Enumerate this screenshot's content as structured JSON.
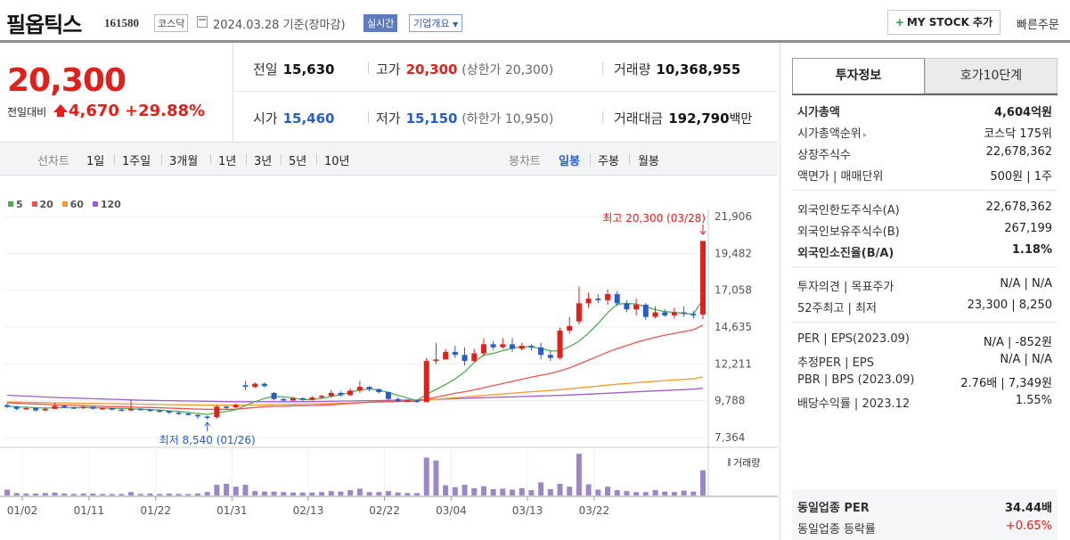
{
  "header": {
    "name": "필옵틱스",
    "code": "161580",
    "market": "코스닥",
    "date": "2024.03.28",
    "basis": "기준(장마감)",
    "realtime": "실시간",
    "company_info": "기업개요",
    "mystock_label": "MY STOCK 추가",
    "quick_order": "빠른주문"
  },
  "price": {
    "current": "20,300",
    "compare_label": "전일대비",
    "change": "4,670",
    "change_pct": "+29.88%"
  },
  "quote": {
    "prev_label": "전일",
    "prev": "15,630",
    "high_label": "고가",
    "high": "20,300",
    "upper_limit": "(상한가 20,300)",
    "volume_label": "거래량",
    "volume": "10,368,955",
    "open_label": "시가",
    "open": "15,460",
    "low_label": "저가",
    "low": "15,150",
    "lower_limit": "(하한가 10,950)",
    "amount_label": "거래대금",
    "amount": "192,790",
    "amount_unit": "백만"
  },
  "period_bar": {
    "line_chart_label": "선차트",
    "line_periods": [
      "1일",
      "1주일",
      "3개월",
      "1년",
      "3년",
      "5년",
      "10년"
    ],
    "candle_label": "봉차트",
    "candle_periods": [
      "일봉",
      "주봉",
      "월봉"
    ],
    "active_candle": "일봉"
  },
  "chart_data": {
    "type": "candlestick",
    "legend": [
      {
        "name": "5",
        "color": "#4caf50"
      },
      {
        "name": "20",
        "color": "#f2524f"
      },
      {
        "name": "60",
        "color": "#f39a2a"
      },
      {
        "name": "120",
        "color": "#a25bd0"
      }
    ],
    "y_ticks": [
      "21,906",
      "19,482",
      "17,058",
      "14,635",
      "12,211",
      "9,788",
      "7,364"
    ],
    "ylim": [
      7364,
      21906
    ],
    "x_ticks": [
      "01/02",
      "01/11",
      "01/22",
      "01/31",
      "02/13",
      "02/22",
      "03/04",
      "03/13",
      "03/22"
    ],
    "high_annotation": "최고 20,300 (03/28)",
    "low_annotation": "최저 8,540 (01/26)",
    "volume_label": "거래량",
    "candles": [
      [
        9500,
        9380,
        9600,
        9300
      ],
      [
        9400,
        9250,
        9450,
        9150
      ],
      [
        9260,
        9300,
        9400,
        9200
      ],
      [
        9300,
        9150,
        9350,
        9050
      ],
      [
        9150,
        9250,
        9350,
        9100
      ],
      [
        9250,
        9450,
        9650,
        9250
      ],
      [
        9450,
        9350,
        9500,
        9300
      ],
      [
        9350,
        9300,
        9400,
        9250
      ],
      [
        9300,
        9380,
        9450,
        9250
      ],
      [
        9380,
        9260,
        9400,
        9200
      ],
      [
        9260,
        9300,
        9350,
        9200
      ],
      [
        9300,
        9200,
        9350,
        9150
      ],
      [
        9200,
        9150,
        9300,
        9100
      ],
      [
        9150,
        9250,
        9800,
        9100
      ],
      [
        9250,
        9200,
        9300,
        9150
      ],
      [
        9200,
        9150,
        9250,
        9050
      ],
      [
        9150,
        9100,
        9200,
        9000
      ],
      [
        9100,
        9000,
        9150,
        8900
      ],
      [
        9000,
        8950,
        9050,
        8850
      ],
      [
        8950,
        8850,
        9000,
        8800
      ],
      [
        8850,
        8750,
        8900,
        8600
      ],
      [
        8750,
        8700,
        8800,
        8540
      ],
      [
        8700,
        9400,
        9500,
        8600
      ],
      [
        9400,
        9350,
        9450,
        9250
      ],
      [
        9350,
        9500,
        9600,
        9300
      ],
      [
        10800,
        10700,
        11100,
        10500
      ],
      [
        10700,
        10900,
        11000,
        10600
      ],
      [
        10900,
        10750,
        11000,
        10650
      ],
      [
        10300,
        9900,
        10350,
        9800
      ],
      [
        9900,
        9800,
        9950,
        9700
      ],
      [
        9800,
        9950,
        10050,
        9750
      ],
      [
        9950,
        9850,
        10000,
        9750
      ],
      [
        9850,
        10000,
        10100,
        9800
      ],
      [
        10000,
        10100,
        10200,
        9900
      ],
      [
        10100,
        10300,
        10500,
        10000
      ],
      [
        10300,
        10150,
        10400,
        10050
      ],
      [
        10150,
        10450,
        10600,
        10100
      ],
      [
        10450,
        10700,
        11100,
        10300
      ],
      [
        10700,
        10550,
        10750,
        10400
      ],
      [
        10550,
        10350,
        10600,
        10250
      ],
      [
        10350,
        9900,
        10400,
        9800
      ],
      [
        9900,
        9750,
        10000,
        9700
      ],
      [
        9750,
        9800,
        9850,
        9700
      ],
      [
        9800,
        9700,
        9850,
        9650
      ],
      [
        9700,
        12400,
        12600,
        9700
      ],
      [
        12400,
        12500,
        13600,
        12200
      ],
      [
        12500,
        13000,
        13200,
        12700
      ],
      [
        13000,
        12800,
        13400,
        12600
      ],
      [
        12800,
        12400,
        13300,
        12100
      ],
      [
        12400,
        12900,
        13200,
        12300
      ],
      [
        12900,
        13500,
        13900,
        12700
      ],
      [
        13500,
        13300,
        13700,
        13100
      ],
      [
        13300,
        13500,
        13900,
        13200
      ],
      [
        13500,
        13200,
        13900,
        13000
      ],
      [
        13200,
        13400,
        13600,
        13100
      ],
      [
        13400,
        13300,
        13500,
        13100
      ],
      [
        13300,
        12800,
        13600,
        12500
      ],
      [
        12800,
        12600,
        13100,
        12400
      ],
      [
        12600,
        14400,
        14600,
        12500
      ],
      [
        14400,
        14700,
        15300,
        14200
      ],
      [
        15000,
        16200,
        17300,
        14800
      ],
      [
        16200,
        16500,
        16900,
        15900
      ],
      [
        16500,
        16400,
        16800,
        16200
      ],
      [
        16400,
        16800,
        17100,
        16100
      ],
      [
        16800,
        16200,
        17000,
        16000
      ],
      [
        16200,
        15800,
        16400,
        15600
      ],
      [
        15800,
        16100,
        16500,
        15400
      ],
      [
        16100,
        15300,
        16200,
        15100
      ],
      [
        15300,
        15600,
        16000,
        15200
      ],
      [
        15600,
        15400,
        15800,
        15300
      ],
      [
        15400,
        15600,
        15900,
        15200
      ],
      [
        15600,
        15500,
        16000,
        15300
      ],
      [
        15500,
        15400,
        15700,
        15200
      ],
      [
        15460,
        20300,
        20300,
        15150
      ]
    ],
    "ma5": [
      9420,
      9380,
      9360,
      9330,
      9300,
      9320,
      9330,
      9330,
      9340,
      9330,
      9310,
      9290,
      9280,
      9250,
      9230,
      9200,
      9170,
      9120,
      9080,
      9010,
      8950,
      8890,
      8980,
      9090,
      9200,
      9470,
      9720,
      9940,
      10080,
      10040,
      9970,
      9870,
      9870,
      9940,
      10060,
      10190,
      10330,
      10500,
      10560,
      10490,
      10330,
      10150,
      9970,
      9790,
      10200,
      10530,
      10850,
      11220,
      11680,
      12300,
      12800,
      12900,
      13080,
      13240,
      13340,
      13330,
      13220,
      13060,
      13080,
      13340,
      13700,
      14240,
      14870,
      15580,
      16140,
      16180,
      16150,
      15980,
      15780,
      15650,
      15600,
      15530,
      15480,
      16440
    ],
    "ma20": [
      9650,
      9620,
      9590,
      9570,
      9540,
      9520,
      9500,
      9480,
      9460,
      9440,
      9420,
      9400,
      9390,
      9370,
      9350,
      9340,
      9320,
      9300,
      9280,
      9260,
      9240,
      9220,
      9210,
      9220,
      9230,
      9290,
      9340,
      9390,
      9420,
      9430,
      9450,
      9460,
      9470,
      9490,
      9520,
      9560,
      9600,
      9650,
      9690,
      9720,
      9730,
      9740,
      9750,
      9760,
      9890,
      10020,
      10150,
      10270,
      10380,
      10500,
      10640,
      10780,
      10920,
      11060,
      11200,
      11340,
      11460,
      11580,
      11750,
      11950,
      12200,
      12460,
      12720,
      12980,
      13220,
      13420,
      13620,
      13800,
      13960,
      14100,
      14220,
      14340,
      14460,
      14760
    ],
    "ma60": [
      9700,
      9690,
      9680,
      9670,
      9660,
      9650,
      9640,
      9630,
      9620,
      9610,
      9600,
      9590,
      9580,
      9570,
      9560,
      9550,
      9540,
      9530,
      9520,
      9510,
      9500,
      9490,
      9490,
      9490,
      9490,
      9500,
      9510,
      9520,
      9530,
      9540,
      9550,
      9560,
      9570,
      9580,
      9600,
      9620,
      9640,
      9660,
      9680,
      9700,
      9720,
      9740,
      9760,
      9780,
      9830,
      9880,
      9930,
      9980,
      10030,
      10080,
      10130,
      10180,
      10230,
      10280,
      10330,
      10380,
      10420,
      10460,
      10510,
      10570,
      10630,
      10690,
      10750,
      10810,
      10870,
      10920,
      10970,
      11020,
      11070,
      11110,
      11150,
      11190,
      11230,
      11350
    ],
    "ma120": [
      10150,
      10120,
      10090,
      10060,
      10030,
      10000,
      9980,
      9960,
      9940,
      9920,
      9900,
      9880,
      9860,
      9840,
      9820,
      9810,
      9800,
      9790,
      9780,
      9770,
      9760,
      9750,
      9740,
      9730,
      9720,
      9720,
      9720,
      9720,
      9720,
      9720,
      9720,
      9720,
      9730,
      9740,
      9750,
      9760,
      9770,
      9780,
      9790,
      9800,
      9810,
      9820,
      9830,
      9840,
      9860,
      9880,
      9900,
      9920,
      9940,
      9960,
      9980,
      10000,
      10020,
      10040,
      10060,
      10080,
      10100,
      10120,
      10140,
      10160,
      10190,
      10220,
      10250,
      10280,
      10310,
      10340,
      10370,
      10400,
      10430,
      10460,
      10490,
      10520,
      10550,
      10610
    ],
    "volume": [
      1.2,
      0.5,
      0.4,
      0.4,
      0.5,
      0.6,
      0.4,
      0.3,
      0.4,
      0.4,
      0.3,
      0.3,
      0.3,
      0.7,
      0.3,
      0.4,
      0.3,
      0.4,
      0.3,
      0.3,
      0.4,
      0.7,
      2.2,
      2.4,
      1.8,
      2.2,
      0.9,
      0.8,
      0.8,
      0.7,
      0.6,
      0.6,
      0.6,
      0.7,
      0.9,
      0.8,
      1.1,
      1.4,
      0.7,
      0.7,
      0.9,
      0.6,
      0.5,
      0.5,
      7.8,
      7.2,
      2.1,
      1.7,
      2.2,
      1.5,
      1.9,
      1.3,
      1.4,
      1.2,
      1.5,
      1.1,
      2.7,
      1.3,
      2.4,
      1.8,
      8.6,
      2.3,
      1.2,
      1.8,
      1.1,
      0.9,
      0.7,
      0.7,
      1.1,
      0.8,
      0.7,
      1.0,
      0.8,
      5.2
    ]
  },
  "info": {
    "tab_active": "투자정보",
    "tab_other": "호가10단계",
    "rows1": [
      {
        "k": "시가총액",
        "v": "4,604억원",
        "bold": true
      },
      {
        "k": "시가총액순위",
        "v": "코스닥 175위",
        "arrow": true
      },
      {
        "k": "상장주식수",
        "v": "22,678,362"
      },
      {
        "k": "액면가 | 매매단위",
        "v": "500원 | 1주"
      }
    ],
    "rows2": [
      {
        "k": "외국인한도주식수(A)",
        "v": "22,678,362"
      },
      {
        "k": "외국인보유주식수(B)",
        "v": "267,199"
      },
      {
        "k": "외국인소진율(B/A)",
        "v": "1.18%",
        "bold": true
      }
    ],
    "rows3": [
      {
        "k": "투자의견 | 목표주가",
        "v": "N/A | N/A"
      },
      {
        "k": "52주최고 | 최저",
        "v": "23,300 | 8,250"
      }
    ],
    "rows4": [
      {
        "k": "PER | EPS(2023.09)",
        "v": "N/A | -852원"
      },
      {
        "k": "추정PER | EPS",
        "v": "N/A | N/A"
      },
      {
        "k": "PBR | BPS (2023.09)",
        "v": "2.76배 | 7,349원"
      },
      {
        "k": "배당수익률 | 2023.12",
        "v": "1.55%"
      }
    ],
    "peer_per_label": "동일업종 PER",
    "peer_per": "34.44배",
    "peer_rate_label": "동일업종 등락률",
    "peer_rate": "+0.65%"
  }
}
